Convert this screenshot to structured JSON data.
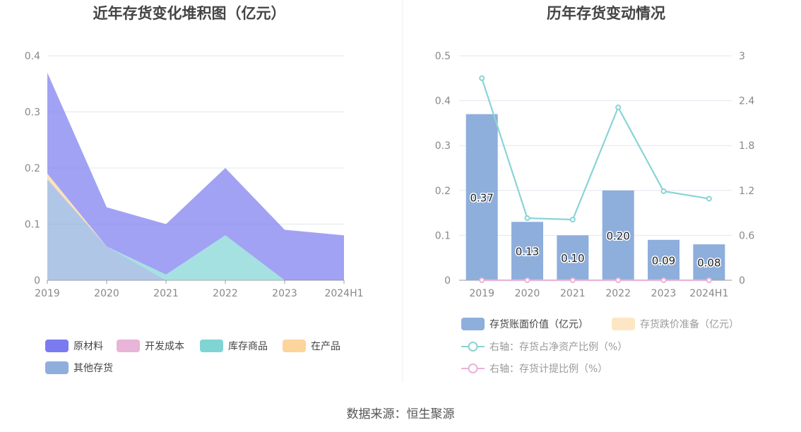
{
  "source": "数据来源：恒生聚源",
  "chart_data": [
    {
      "type": "area",
      "stacked": true,
      "title": "近年存货变化堆积图（亿元）",
      "categories": [
        "2019",
        "2020",
        "2021",
        "2022",
        "2023",
        "2024H1"
      ],
      "ylim": [
        0,
        0.4
      ],
      "yticks": [
        "0",
        "0.1",
        "0.2",
        "0.3",
        "0.4"
      ],
      "grid": true,
      "legend_position": "bottom",
      "series": [
        {
          "name": "原材料",
          "color": "#7b7bf0",
          "values": [
            0.18,
            0.07,
            0.09,
            0.12,
            0.09,
            0.08
          ]
        },
        {
          "name": "开发成本",
          "color": "#e8b4d8",
          "values": [
            0,
            0,
            0,
            0,
            0,
            0
          ]
        },
        {
          "name": "库存商品",
          "color": "#80d4d4",
          "values": [
            0,
            0,
            0.01,
            0.08,
            0,
            0
          ]
        },
        {
          "name": "在产品",
          "color": "#fcd49c",
          "values": [
            0.01,
            0,
            0,
            0,
            0,
            0
          ]
        },
        {
          "name": "其他存货",
          "color": "#8eaedc",
          "values": [
            0.18,
            0.06,
            0,
            0,
            0,
            0
          ]
        }
      ]
    },
    {
      "type": "bar",
      "title": "历年存货变动情况",
      "categories": [
        "2019",
        "2020",
        "2021",
        "2022",
        "2023",
        "2024H1"
      ],
      "ylim": [
        0,
        0.5
      ],
      "yticks": [
        "0",
        "0.1",
        "0.2",
        "0.3",
        "0.4",
        "0.5"
      ],
      "y2lim": [
        0,
        3
      ],
      "y2ticks": [
        "0",
        "0.6",
        "1.2",
        "1.8",
        "2.4",
        "3"
      ],
      "grid": true,
      "legend_position": "bottom",
      "series": [
        {
          "name": "存货账面价值（亿元）",
          "kind": "bar",
          "axis": "left",
          "color": "#8eaedc",
          "values": [
            0.37,
            0.13,
            0.1,
            0.2,
            0.09,
            0.08
          ],
          "labels": [
            "0.37",
            "0.13",
            "0.10",
            "0.20",
            "0.09",
            "0.08"
          ]
        },
        {
          "name": "存货跌价准备（亿元）",
          "kind": "bar",
          "axis": "left",
          "color": "#fde6c4",
          "values": [
            0,
            0,
            0,
            0,
            0,
            0
          ]
        },
        {
          "name": "右轴：存货占净资产比例（%）",
          "kind": "line",
          "axis": "right",
          "color": "#8ad3d6",
          "values": [
            2.7,
            0.83,
            0.81,
            2.31,
            1.19,
            1.09
          ]
        },
        {
          "name": "右轴：存货计提比例（%）",
          "kind": "line",
          "axis": "right",
          "color": "#e8b4d8",
          "values": [
            0,
            0,
            0,
            0,
            0,
            0
          ]
        }
      ]
    }
  ]
}
